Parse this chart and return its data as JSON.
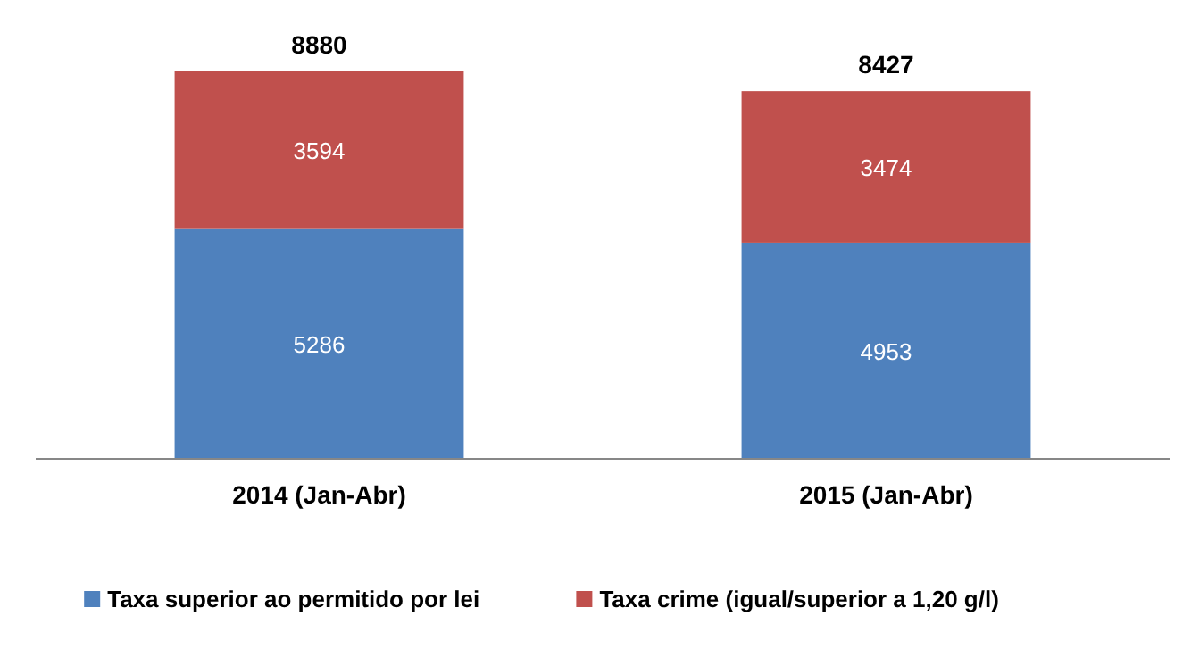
{
  "chart_data": {
    "type": "bar",
    "stacked": true,
    "categories": [
      "2014 (Jan-Abr)",
      "2015 (Jan-Abr)"
    ],
    "series": [
      {
        "name": "Taxa superior ao permitido por lei",
        "color": "#4f81bd",
        "values": [
          5286,
          4953
        ]
      },
      {
        "name": "Taxa crime (igual/superior a 1,20 g/l)",
        "color": "#c0504d",
        "values": [
          3594,
          3474
        ]
      }
    ],
    "totals": [
      "8880",
      "8427"
    ],
    "data_labels": true,
    "legend": "bottom"
  }
}
